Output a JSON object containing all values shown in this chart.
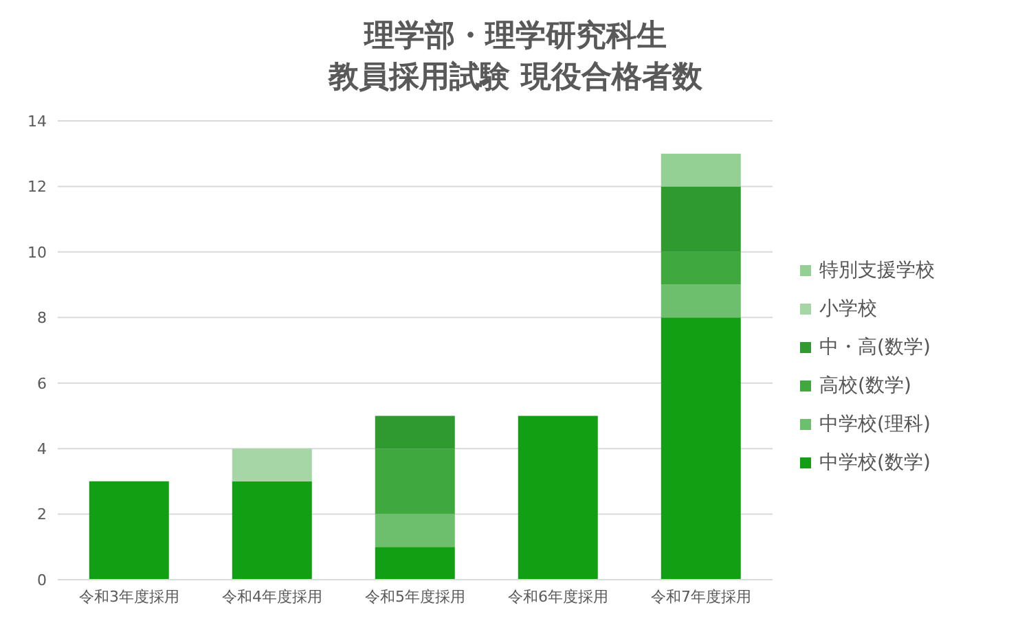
{
  "chart_data": {
    "type": "bar",
    "title": "理学部・理学研究科生",
    "subtitle": "教員採用試験 現役合格者数",
    "categories": [
      "令和3年度採用",
      "令和4年度採用",
      "令和5年度採用",
      "令和6年度採用",
      "令和7年度採用"
    ],
    "stacked": true,
    "series": [
      {
        "name": "中学校(数学)",
        "color": "#139f13",
        "values": [
          3,
          3,
          1,
          5,
          8
        ]
      },
      {
        "name": "中学校(理科)",
        "color": "#6dbf6d",
        "values": [
          0,
          0,
          1,
          0,
          1
        ]
      },
      {
        "name": "高校(数学)",
        "color": "#3fa83f",
        "values": [
          0,
          0,
          2,
          0,
          1
        ]
      },
      {
        "name": "中・高(数学)",
        "color": "#2f9a2f",
        "values": [
          0,
          0,
          1,
          0,
          2
        ]
      },
      {
        "name": "小学校",
        "color": "#a6d6a6",
        "values": [
          0,
          1,
          0,
          0,
          0
        ]
      },
      {
        "name": "特別支援学校",
        "color": "#94cf94",
        "values": [
          0,
          0,
          0,
          0,
          1
        ]
      }
    ],
    "ylim": [
      0,
      14
    ],
    "yticks": [
      0,
      2,
      4,
      6,
      8,
      10,
      12,
      14
    ],
    "grid": "y",
    "legend": "right"
  }
}
